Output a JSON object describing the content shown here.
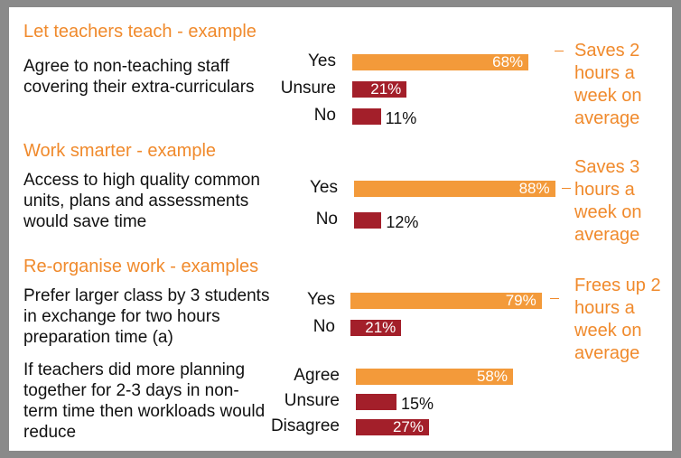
{
  "colors": {
    "yes": "#f39a3a",
    "other": "#a31f2a",
    "accent": "#f08a2c"
  },
  "chart_data": {
    "type": "bar",
    "orientation": "horizontal",
    "unit": "%",
    "groups": [
      {
        "title": "Let teachers teach - example",
        "questions": [
          {
            "text": "Agree to non-teaching staff covering their extra-curriculars",
            "categories": [
              "Yes",
              "Unsure",
              "No"
            ],
            "values": [
              68,
              21,
              11
            ],
            "labels": [
              "68%",
              "21%",
              "11%"
            ],
            "note": "Saves 2 hours a week on average"
          }
        ]
      },
      {
        "title": "Work smarter - example",
        "questions": [
          {
            "text": "Access to high quality common units, plans and assessments would save time",
            "categories": [
              "Yes",
              "No"
            ],
            "values": [
              88,
              12
            ],
            "labels": [
              "88%",
              "12%"
            ],
            "note": "Saves 3 hours a week on average"
          }
        ]
      },
      {
        "title": "Re-organise work - examples",
        "questions": [
          {
            "text": "Prefer larger class by 3 students in exchange for two hours preparation time (a)",
            "categories": [
              "Yes",
              "No"
            ],
            "values": [
              79,
              21
            ],
            "labels": [
              "79%",
              "21%"
            ],
            "note": "Frees up 2 hours a week on average"
          },
          {
            "text": "If teachers did more planning together for 2-3 days in non-term time then workloads would reduce",
            "categories": [
              "Agree",
              "Unsure",
              "Disagree"
            ],
            "values": [
              58,
              15,
              27
            ],
            "labels": [
              "58%",
              "15%",
              "27%"
            ],
            "note": ""
          }
        ]
      }
    ]
  }
}
